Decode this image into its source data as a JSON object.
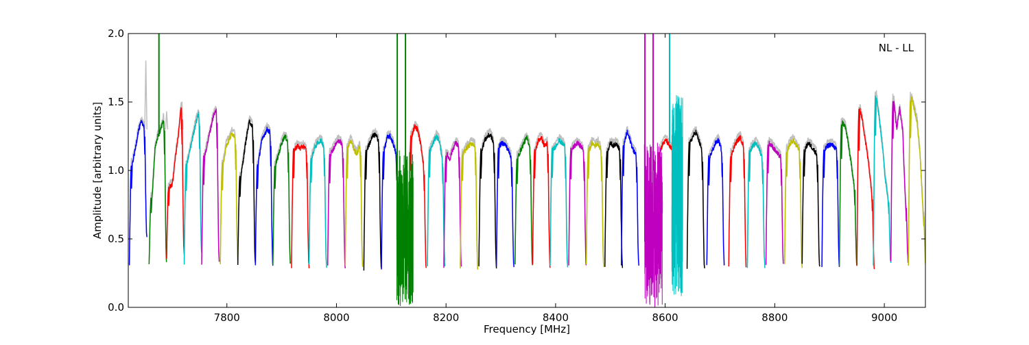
{
  "chart_data": {
    "type": "line",
    "title": "",
    "annotation": "NL - LL",
    "xlabel": "Frequency [MHz]",
    "ylabel": "Amplitude [arbitrary units]",
    "xlim": [
      7620,
      9075
    ],
    "ylim": [
      0.0,
      2.0
    ],
    "xticks": [
      7800,
      8000,
      8200,
      8400,
      8600,
      8800,
      9000
    ],
    "xtick_labels": [
      "7800",
      "8000",
      "8200",
      "8400",
      "8600",
      "8800",
      "9000"
    ],
    "yticks": [
      0.0,
      0.5,
      1.0,
      1.5,
      2.0
    ],
    "ytick_labels": [
      "0.0",
      "0.5",
      "1.0",
      "1.5",
      "2.0"
    ],
    "grid": false,
    "legend": "none",
    "background_trace_color": "#bfbfbf",
    "color_cycle": [
      "#0000ff",
      "#008000",
      "#ff0000",
      "#00bfbf",
      "#bf00bf",
      "#bfbf00",
      "#000000"
    ],
    "channel_width_mhz": 32,
    "channels": [
      {
        "start": 7622,
        "color": "#0000ff",
        "shape": [
          0.3,
          1.05,
          1.15,
          1.28,
          1.35,
          1.33,
          0.5
        ]
      },
      {
        "start": 7658,
        "color": "#008000",
        "shape": [
          0.3,
          0.8,
          1.15,
          1.25,
          1.3,
          1.38,
          0.32
        ]
      },
      {
        "start": 7690,
        "color": "#ff0000",
        "shape": [
          0.35,
          0.88,
          0.9,
          1.1,
          1.25,
          1.47,
          0.4
        ]
      },
      {
        "start": 7722,
        "color": "#00bfbf",
        "shape": [
          0.3,
          1.05,
          1.15,
          1.25,
          1.35,
          1.42,
          0.4
        ]
      },
      {
        "start": 7754,
        "color": "#bf00bf",
        "shape": [
          0.3,
          1.1,
          1.2,
          1.3,
          1.4,
          1.44,
          0.35
        ]
      },
      {
        "start": 7788,
        "color": "#bfbf00",
        "shape": [
          0.32,
          1.05,
          1.18,
          1.22,
          1.27,
          1.25,
          0.35
        ]
      },
      {
        "start": 7820,
        "color": "#000000",
        "shape": [
          0.32,
          0.95,
          1.1,
          1.25,
          1.36,
          1.32,
          0.32
        ]
      },
      {
        "start": 7852,
        "color": "#0000ff",
        "shape": [
          0.3,
          1.05,
          1.2,
          1.26,
          1.3,
          1.28,
          0.3
        ]
      },
      {
        "start": 7884,
        "color": "#008000",
        "shape": [
          0.3,
          1.05,
          1.12,
          1.2,
          1.25,
          1.22,
          0.32
        ]
      },
      {
        "start": 7918,
        "color": "#ff0000",
        "shape": [
          0.3,
          1.15,
          1.18,
          1.16,
          1.18,
          1.15,
          0.3
        ]
      },
      {
        "start": 7950,
        "color": "#00bfbf",
        "shape": [
          0.3,
          1.1,
          1.17,
          1.2,
          1.22,
          1.18,
          0.3
        ]
      },
      {
        "start": 7984,
        "color": "#bf00bf",
        "shape": [
          0.3,
          1.12,
          1.16,
          1.2,
          1.22,
          1.18,
          0.3
        ]
      },
      {
        "start": 8016,
        "color": "#bfbf00",
        "shape": [
          0.3,
          1.18,
          1.22,
          1.15,
          1.12,
          1.18,
          0.3
        ]
      },
      {
        "start": 8050,
        "color": "#000000",
        "shape": [
          0.28,
          1.15,
          1.2,
          1.25,
          1.26,
          1.22,
          0.28
        ]
      },
      {
        "start": 8082,
        "color": "#0000ff",
        "shape": [
          0.28,
          1.15,
          1.24,
          1.25,
          1.2,
          1.12,
          0.3
        ]
      },
      {
        "start": 8132,
        "color": "#ff0000",
        "shape": [
          0.3,
          1.25,
          1.32,
          1.3,
          1.2,
          1.05,
          0.28
        ]
      },
      {
        "start": 8166,
        "color": "#00bfbf",
        "shape": [
          0.3,
          1.15,
          1.2,
          1.25,
          1.22,
          1.1,
          0.3
        ]
      },
      {
        "start": 8196,
        "color": "#bf00bf",
        "shape": [
          0.3,
          1.12,
          1.08,
          1.15,
          1.2,
          1.18,
          0.3
        ]
      },
      {
        "start": 8226,
        "color": "#bfbf00",
        "shape": [
          0.28,
          1.12,
          1.16,
          1.18,
          1.2,
          1.18,
          0.28
        ]
      },
      {
        "start": 8260,
        "color": "#000000",
        "shape": [
          0.3,
          1.15,
          1.22,
          1.25,
          1.26,
          1.2,
          0.3
        ]
      },
      {
        "start": 8292,
        "color": "#0000ff",
        "shape": [
          0.3,
          1.18,
          1.2,
          1.19,
          1.15,
          1.1,
          0.3
        ]
      },
      {
        "start": 8326,
        "color": "#008000",
        "shape": [
          0.32,
          1.1,
          1.15,
          1.2,
          1.24,
          1.18,
          0.3
        ]
      },
      {
        "start": 8358,
        "color": "#ff0000",
        "shape": [
          0.3,
          1.15,
          1.22,
          1.24,
          1.18,
          1.2,
          0.3
        ]
      },
      {
        "start": 8390,
        "color": "#00bfbf",
        "shape": [
          0.3,
          1.15,
          1.18,
          1.22,
          1.2,
          1.18,
          0.3
        ]
      },
      {
        "start": 8424,
        "color": "#bf00bf",
        "shape": [
          0.3,
          1.15,
          1.18,
          1.2,
          1.18,
          1.15,
          0.3
        ]
      },
      {
        "start": 8456,
        "color": "#bfbf00",
        "shape": [
          0.32,
          1.15,
          1.2,
          1.18,
          1.2,
          1.15,
          0.3
        ]
      },
      {
        "start": 8490,
        "color": "#000000",
        "shape": [
          0.3,
          1.15,
          1.2,
          1.18,
          1.2,
          1.15,
          0.3
        ]
      },
      {
        "start": 8520,
        "color": "#0000ff",
        "shape": [
          0.3,
          1.2,
          1.28,
          1.22,
          1.15,
          1.12,
          0.3
        ]
      },
      {
        "start": 8586,
        "color": "#ff0000",
        "shape": [
          0.3,
          1.15,
          1.2,
          1.22,
          1.18,
          1.15,
          0.3
        ]
      },
      {
        "start": 8640,
        "color": "#000000",
        "shape": [
          0.28,
          1.2,
          1.25,
          1.28,
          1.22,
          1.15,
          0.28
        ]
      },
      {
        "start": 8676,
        "color": "#0000ff",
        "shape": [
          0.3,
          1.1,
          1.15,
          1.2,
          1.22,
          1.15,
          0.3
        ]
      },
      {
        "start": 8716,
        "color": "#ff0000",
        "shape": [
          0.3,
          1.12,
          1.18,
          1.22,
          1.24,
          1.18,
          0.3
        ]
      },
      {
        "start": 8750,
        "color": "#00bfbf",
        "shape": [
          0.3,
          1.15,
          1.18,
          1.2,
          1.16,
          1.1,
          0.3
        ]
      },
      {
        "start": 8784,
        "color": "#bf00bf",
        "shape": [
          0.32,
          1.2,
          1.18,
          1.15,
          1.12,
          1.1,
          0.3
        ]
      },
      {
        "start": 8818,
        "color": "#bfbf00",
        "shape": [
          0.32,
          1.15,
          1.2,
          1.22,
          1.18,
          1.15,
          0.3
        ]
      },
      {
        "start": 8850,
        "color": "#000000",
        "shape": [
          0.32,
          1.15,
          1.2,
          1.18,
          1.15,
          1.12,
          0.3
        ]
      },
      {
        "start": 8886,
        "color": "#0000ff",
        "shape": [
          0.3,
          1.15,
          1.18,
          1.19,
          1.18,
          1.15,
          0.3
        ]
      },
      {
        "start": 8918,
        "color": "#008000",
        "shape": [
          0.3,
          1.35,
          1.32,
          1.2,
          1.05,
          0.9,
          0.3
        ]
      },
      {
        "start": 8950,
        "color": "#ff0000",
        "shape": [
          0.3,
          1.45,
          1.35,
          1.2,
          1.05,
          0.85,
          0.28
        ]
      },
      {
        "start": 8980,
        "color": "#00bfbf",
        "shape": [
          0.32,
          1.55,
          1.38,
          1.2,
          0.95,
          0.8,
          0.32
        ]
      },
      {
        "start": 9012,
        "color": "#bf00bf",
        "shape": [
          0.32,
          1.52,
          1.3,
          1.45,
          1.3,
          0.75,
          0.32
        ]
      },
      {
        "start": 9044,
        "color": "#bfbf00",
        "shape": [
          0.32,
          1.53,
          1.45,
          1.35,
          1.1,
          0.7,
          0.3
        ]
      }
    ],
    "rfi_segments": [
      {
        "color": "#008000",
        "x": [
          7676,
          7676,
          7676
        ],
        "y": [
          1.25,
          2.0,
          1.25
        ],
        "kind": "spike"
      },
      {
        "color": "#008000",
        "x": [
          8110,
          8140
        ],
        "y": [
          0.0,
          1.15
        ],
        "kind": "noise"
      },
      {
        "color": "#008000",
        "x": [
          8111,
          8111,
          8111
        ],
        "y": [
          0.9,
          2.0,
          0.9
        ],
        "kind": "spike"
      },
      {
        "color": "#008000",
        "x": [
          8126,
          8126,
          8126
        ],
        "y": [
          0.9,
          2.0,
          0.9
        ],
        "kind": "spike"
      },
      {
        "color": "#bf00bf",
        "x": [
          8562,
          8595
        ],
        "y": [
          0.0,
          1.2
        ],
        "kind": "noise"
      },
      {
        "color": "#bf00bf",
        "x": [
          8563,
          8563,
          8563
        ],
        "y": [
          1.0,
          2.0,
          1.0
        ],
        "kind": "spike"
      },
      {
        "color": "#bf00bf",
        "x": [
          8578,
          8578,
          8578
        ],
        "y": [
          1.0,
          2.0,
          1.0
        ],
        "kind": "spike"
      },
      {
        "color": "#00bfbf",
        "x": [
          8608,
          8608,
          8608
        ],
        "y": [
          1.2,
          2.0,
          1.2
        ],
        "kind": "spike"
      },
      {
        "color": "#00bfbf",
        "x": [
          8612,
          8632
        ],
        "y": [
          0.08,
          1.55
        ],
        "kind": "noise"
      }
    ],
    "grey_excess": [
      {
        "x": 7652,
        "y": 1.8
      },
      {
        "x": 7718,
        "y": 1.5
      },
      {
        "x": 7690,
        "y": 1.43
      }
    ]
  }
}
